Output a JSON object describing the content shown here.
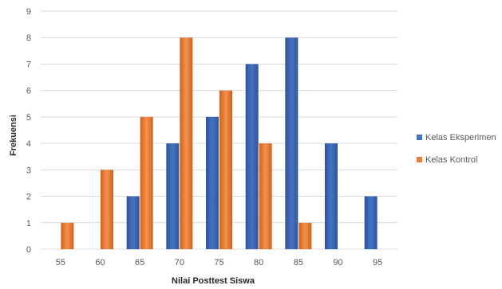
{
  "chart_data": {
    "type": "bar",
    "title": "",
    "xlabel": "Nilai Posttest Siswa",
    "ylabel": "Frekuensi",
    "categories": [
      "55",
      "60",
      "65",
      "70",
      "75",
      "80",
      "85",
      "90",
      "95"
    ],
    "ylim": [
      0,
      9
    ],
    "yticks": [
      0,
      1,
      2,
      3,
      4,
      5,
      6,
      7,
      8,
      9
    ],
    "grid": true,
    "legend_position": "right",
    "series": [
      {
        "name": "Kelas Eksperimen",
        "color": "#4472C4",
        "values": [
          0,
          0,
          2,
          4,
          5,
          7,
          8,
          4,
          2
        ]
      },
      {
        "name": "Kelas Kontrol",
        "color": "#ED7D31",
        "values": [
          1,
          3,
          5,
          8,
          6,
          4,
          1,
          0,
          0
        ]
      }
    ]
  }
}
